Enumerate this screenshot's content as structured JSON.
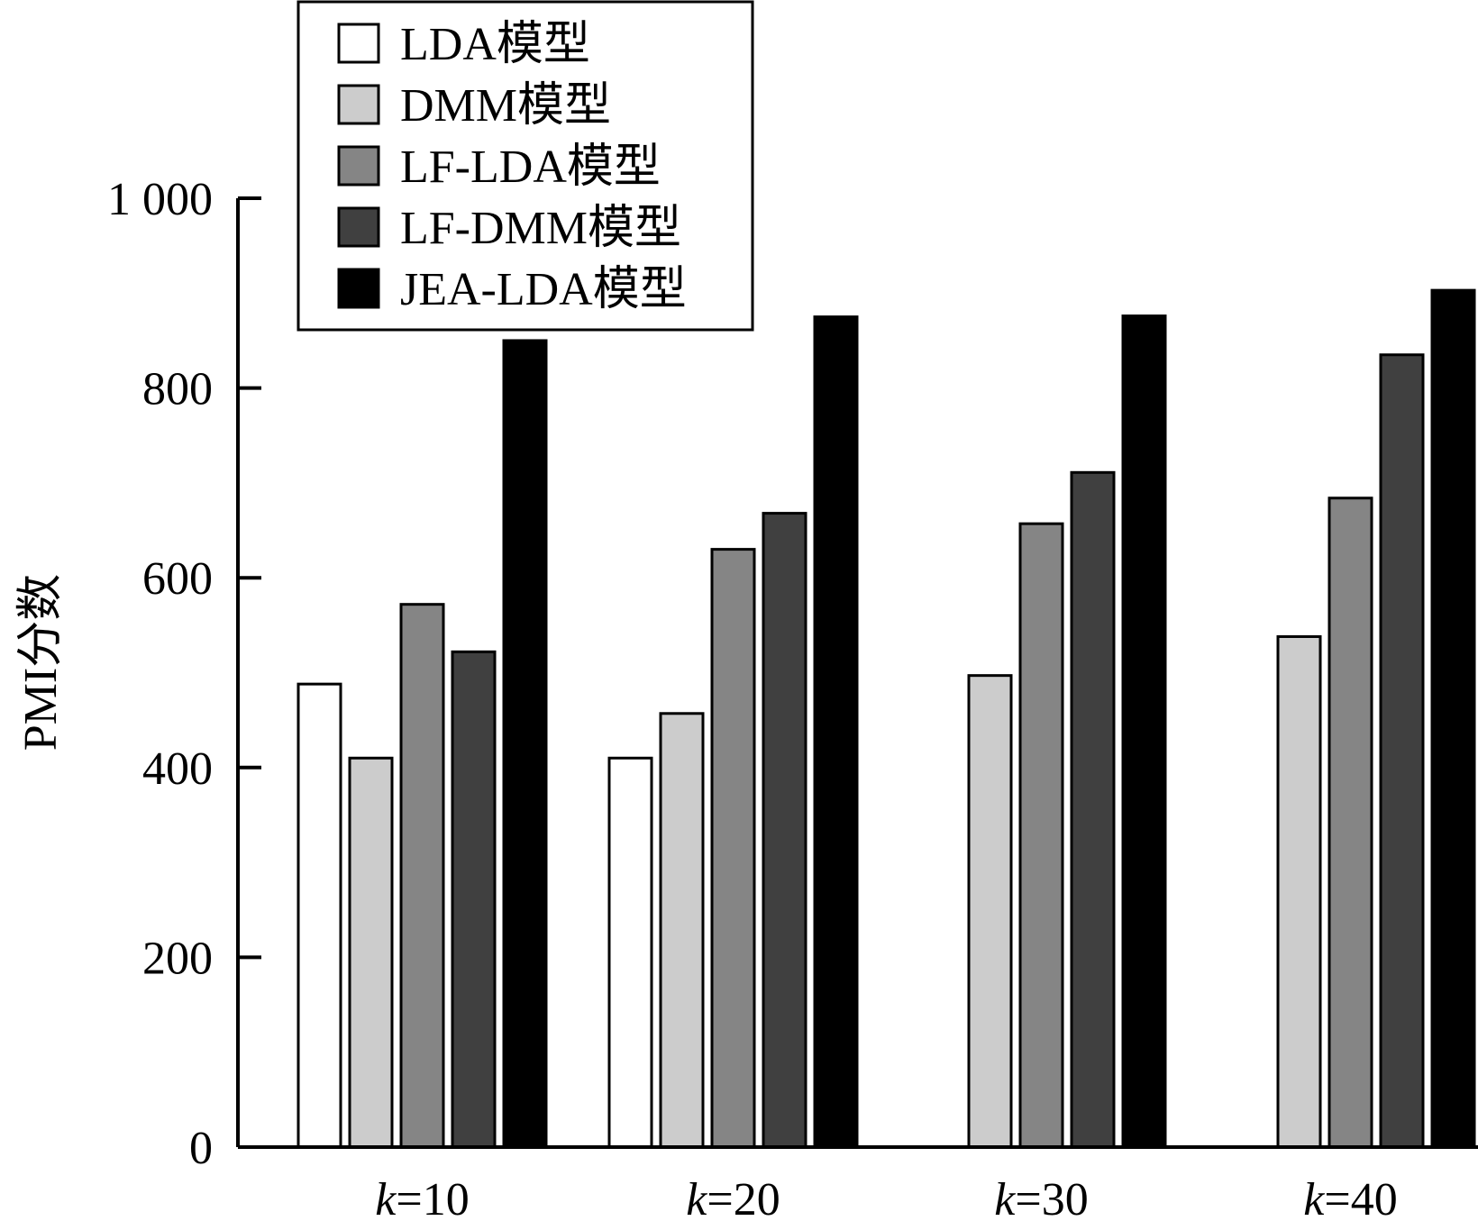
{
  "chart_data": {
    "type": "bar",
    "title": "",
    "xlabel": "",
    "ylabel": "PMI分数",
    "ylim": [
      0,
      1000
    ],
    "yticks": [
      0,
      200,
      400,
      600,
      800,
      1000
    ],
    "ytick_labels": [
      "0",
      "200",
      "400",
      "600",
      "800",
      "1 000"
    ],
    "categories": [
      {
        "prefix": "k",
        "suffix": "=10"
      },
      {
        "prefix": "k",
        "suffix": "=20"
      },
      {
        "prefix": "k",
        "suffix": "=30"
      },
      {
        "prefix": "k",
        "suffix": "=40"
      }
    ],
    "series": [
      {
        "name": "LDA模型",
        "color": "#ffffff",
        "values": [
          488,
          410,
          0,
          0
        ]
      },
      {
        "name": "DMM模型",
        "color": "#cccccc",
        "values": [
          410,
          457,
          497,
          538
        ]
      },
      {
        "name": "LF-LDA模型",
        "color": "#858585",
        "values": [
          572,
          630,
          657,
          684
        ]
      },
      {
        "name": "LF-DMM模型",
        "color": "#404040",
        "values": [
          522,
          668,
          711,
          835
        ]
      },
      {
        "name": "JEA-LDA模型",
        "color": "#000000",
        "values": [
          850,
          875,
          876,
          903
        ]
      }
    ],
    "grid": false,
    "legend_position": "top-left"
  }
}
